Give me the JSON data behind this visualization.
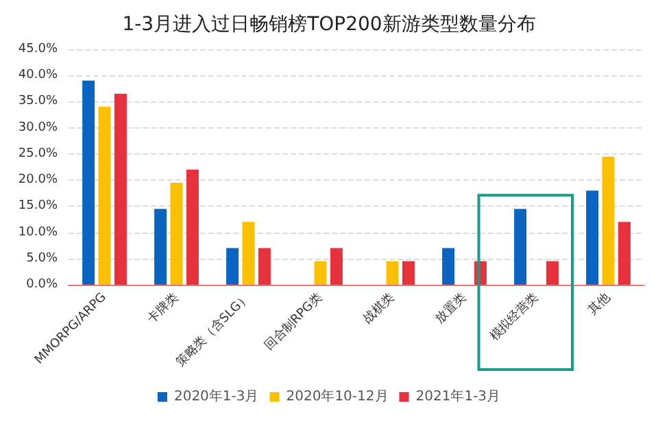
{
  "chart_data": {
    "type": "bar",
    "title": "1-3月进入过日畅销榜TOP200新游类型数量分布",
    "categories": [
      "MMORPG/ARPG",
      "卡牌类",
      "策略类（含SLG）",
      "回合制RPG类",
      "战棋类",
      "放置类",
      "模拟经营类",
      "其他"
    ],
    "series": [
      {
        "name": "2020年1-3月",
        "color": "#0d63c0",
        "values": [
          39.0,
          14.5,
          7.0,
          null,
          null,
          7.0,
          14.5,
          18.0
        ]
      },
      {
        "name": "2020年10-12月",
        "color": "#fcc002",
        "values": [
          34.0,
          19.5,
          12.0,
          4.5,
          4.5,
          null,
          null,
          24.5
        ]
      },
      {
        "name": "2021年1-3月",
        "color": "#e5323c",
        "values": [
          36.5,
          22.0,
          7.0,
          7.0,
          4.5,
          4.5,
          4.5,
          12.0
        ]
      }
    ],
    "ylim": [
      0,
      45
    ],
    "yticks": [
      {
        "value": 0,
        "label": "0.0%"
      },
      {
        "value": 5,
        "label": "5.0%"
      },
      {
        "value": 10,
        "label": "10.0%"
      },
      {
        "value": 15,
        "label": "15.0%"
      },
      {
        "value": 20,
        "label": "20.0%"
      },
      {
        "value": 25,
        "label": "25.0%"
      },
      {
        "value": 30,
        "label": "30.0%"
      },
      {
        "value": 35,
        "label": "35.0%"
      },
      {
        "value": 40,
        "label": "40.0%"
      },
      {
        "value": 45,
        "label": "45.0%"
      }
    ],
    "grid": "y",
    "legend": "bottom"
  }
}
